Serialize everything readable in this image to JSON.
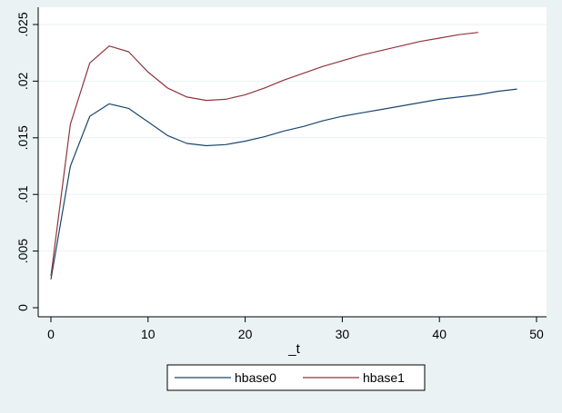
{
  "colors": {
    "outer_bg": "#eaf2f3",
    "plot_bg": "#ffffff",
    "grid": "#eaf2f3",
    "axis": "#000000",
    "hbase0": "#1a476f",
    "hbase1": "#90353b"
  },
  "chart_data": {
    "type": "line",
    "xlabel": "_t",
    "ylabel": "",
    "xlim": [
      0,
      50
    ],
    "ylim": [
      0,
      0.025
    ],
    "x_ticks": [
      0,
      10,
      20,
      30,
      40,
      50
    ],
    "x_tick_labels": [
      "0",
      "10",
      "20",
      "30",
      "40",
      "50"
    ],
    "y_ticks": [
      0,
      0.005,
      0.01,
      0.015,
      0.02,
      0.025
    ],
    "y_tick_labels": [
      "0",
      ".005",
      ".01",
      ".015",
      ".02",
      ".025"
    ],
    "grid": true,
    "legend": "bottom",
    "series": [
      {
        "name": "hbase0",
        "color": "#1a476f",
        "x": [
          0,
          2,
          4,
          6,
          8,
          10,
          12,
          14,
          16,
          18,
          20,
          22,
          24,
          26,
          28,
          30,
          32,
          34,
          36,
          38,
          40,
          42,
          44,
          46,
          48
        ],
        "values": [
          0.0025,
          0.0125,
          0.0169,
          0.018,
          0.0176,
          0.0164,
          0.0152,
          0.0145,
          0.0143,
          0.0144,
          0.0147,
          0.0151,
          0.0156,
          0.016,
          0.0165,
          0.0169,
          0.0172,
          0.0175,
          0.0178,
          0.0181,
          0.0184,
          0.0186,
          0.0188,
          0.0191,
          0.0193
        ]
      },
      {
        "name": "hbase1",
        "color": "#90353b",
        "x": [
          0,
          2,
          4,
          6,
          8,
          10,
          12,
          14,
          16,
          18,
          20,
          22,
          24,
          26,
          28,
          30,
          32,
          34,
          36,
          38,
          40,
          42,
          44
        ],
        "values": [
          0.0028,
          0.0162,
          0.0216,
          0.0231,
          0.0226,
          0.0208,
          0.0194,
          0.0186,
          0.0183,
          0.0184,
          0.0188,
          0.0194,
          0.0201,
          0.0207,
          0.0213,
          0.0218,
          0.0223,
          0.0227,
          0.0231,
          0.0235,
          0.0238,
          0.0241,
          0.0243
        ]
      }
    ]
  }
}
